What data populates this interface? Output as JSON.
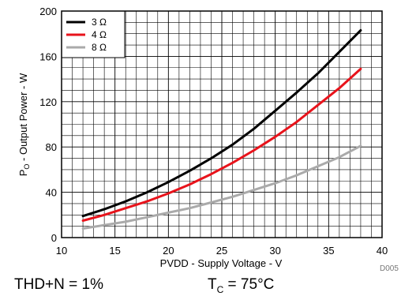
{
  "chart_data": {
    "type": "line",
    "xlabel": "PVDD - Supply Voltage - V",
    "ylabel_parts": {
      "main": "P",
      "sub": "O",
      "rest": " - Output Power - W"
    },
    "xlim": [
      10,
      40
    ],
    "ylim": [
      0,
      200
    ],
    "x_ticks": [
      10,
      15,
      20,
      25,
      30,
      35,
      40
    ],
    "y_ticks": [
      0,
      40,
      80,
      120,
      160,
      200
    ],
    "x_minor_step": 1,
    "y_minor_step": 10,
    "grid": true,
    "legend_position": "top-left",
    "series": [
      {
        "name": "3 Ω",
        "color": "#000000",
        "x": [
          12,
          14,
          16,
          18,
          20,
          22,
          24,
          26,
          28,
          30,
          32,
          34,
          36,
          38
        ],
        "y": [
          19,
          25,
          32,
          40,
          49,
          59,
          70,
          82,
          96,
          112,
          128,
          145,
          164,
          183
        ]
      },
      {
        "name": "4 Ω",
        "color": "#e8131b",
        "x": [
          12,
          14,
          16,
          18,
          20,
          22,
          24,
          26,
          28,
          30,
          32,
          34,
          36,
          38
        ],
        "y": [
          15,
          20,
          26,
          32,
          39,
          47,
          56,
          66,
          77,
          89,
          102,
          117,
          132,
          149
        ]
      },
      {
        "name": "8 Ω",
        "color": "#aaaaaa",
        "x": [
          12,
          14,
          16,
          18,
          20,
          22,
          24,
          26,
          28,
          30,
          32,
          34,
          36,
          38
        ],
        "y": [
          8,
          11,
          14,
          18,
          22,
          26,
          31,
          36,
          42,
          48,
          55,
          63,
          71,
          81
        ]
      }
    ]
  },
  "code_label": "D005",
  "conditions": {
    "left": "THD+N = 1%",
    "right_main": "T",
    "right_sub": "C",
    "right_rest": " = 75°C"
  }
}
